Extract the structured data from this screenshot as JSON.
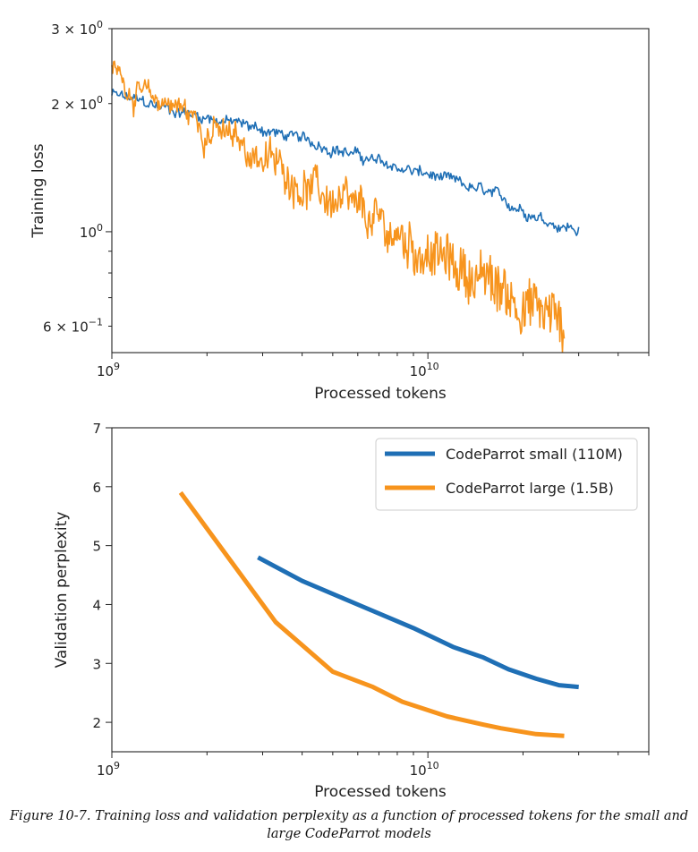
{
  "colors": {
    "small": "#1f6fb5",
    "large": "#f7941d"
  },
  "caption": "Figure 10-7. Training loss and validation perplexity as a function of processed tokens for the small and large CodeParrot models",
  "chart_data": [
    {
      "type": "line",
      "xlabel": "Processed tokens",
      "ylabel": "Training loss",
      "xscale": "log",
      "yscale": "log",
      "xlim": [
        1000000000.0,
        50000000000.0
      ],
      "ylim": [
        0.52,
        3.0
      ],
      "xticks": [
        {
          "value": 1000000000.0,
          "base": "10",
          "exp": "9"
        },
        {
          "value": 10000000000.0,
          "base": "10",
          "exp": "10"
        }
      ],
      "yticks": [
        {
          "value": 3.0,
          "mant": "3 × 10",
          "exp": "0"
        },
        {
          "value": 2.0,
          "mant": "2 × 10",
          "exp": "0"
        },
        {
          "value": 1.0,
          "mant": "10",
          "exp": "0"
        },
        {
          "value": 0.6,
          "mant": "6 × 10",
          "exp": "−1"
        }
      ],
      "grid": false,
      "series": [
        {
          "key": "small",
          "noise": 0.02,
          "values": [
            [
              1000000000.0,
              2.1
            ],
            [
              1400000000.0,
              1.97
            ],
            [
              2000000000.0,
              1.86
            ],
            [
              3000000000.0,
              1.74
            ],
            [
              4000000000.0,
              1.64
            ],
            [
              5000000000.0,
              1.58
            ],
            [
              7000000000.0,
              1.45
            ],
            [
              10000000000.0,
              1.36
            ],
            [
              15000000000.0,
              1.24
            ],
            [
              20000000000.0,
              1.13
            ],
            [
              25000000000.0,
              1.05
            ],
            [
              30000000000.0,
              1.01
            ]
          ]
        },
        {
          "key": "large",
          "noise": 0.06,
          "values": [
            [
              1000000000.0,
              2.4
            ],
            [
              1150000000.0,
              2.2
            ],
            [
              1300000000.0,
              2.0
            ],
            [
              1500000000.0,
              2.05
            ],
            [
              2000000000.0,
              1.75
            ],
            [
              3000000000.0,
              1.5
            ],
            [
              4000000000.0,
              1.3
            ],
            [
              5000000000.0,
              1.18
            ],
            [
              7000000000.0,
              1.03
            ],
            [
              10000000000.0,
              0.89
            ],
            [
              15000000000.0,
              0.77
            ],
            [
              20000000000.0,
              0.68
            ],
            [
              27000000000.0,
              0.61
            ]
          ]
        }
      ]
    },
    {
      "type": "line",
      "xlabel": "Processed tokens",
      "ylabel": "Validation perplexity",
      "xscale": "log",
      "xlim": [
        1000000000.0,
        50000000000.0
      ],
      "ylim": [
        1.5,
        7.0
      ],
      "xticks": [
        {
          "value": 1000000000.0,
          "base": "10",
          "exp": "9"
        },
        {
          "value": 10000000000.0,
          "base": "10",
          "exp": "10"
        }
      ],
      "yticks": [
        {
          "value": 2,
          "label": "2"
        },
        {
          "value": 3,
          "label": "3"
        },
        {
          "value": 4,
          "label": "4"
        },
        {
          "value": 5,
          "label": "5"
        },
        {
          "value": 6,
          "label": "6"
        },
        {
          "value": 7,
          "label": "7"
        }
      ],
      "grid": false,
      "legend_position": "top-right",
      "series": [
        {
          "key": "small",
          "name": "CodeParrot small (110M)",
          "values": [
            [
              2900000000.0,
              4.8
            ],
            [
              4000000000.0,
              4.4
            ],
            [
              6000000000.0,
              4.0
            ],
            [
              9000000000.0,
              3.6
            ],
            [
              12000000000.0,
              3.28
            ],
            [
              15000000000.0,
              3.1
            ],
            [
              18000000000.0,
              2.9
            ],
            [
              22000000000.0,
              2.74
            ],
            [
              26000000000.0,
              2.63
            ],
            [
              30000000000.0,
              2.6
            ]
          ]
        },
        {
          "key": "large",
          "name": "CodeParrot large (1.5B)",
          "values": [
            [
              1650000000.0,
              5.9
            ],
            [
              3300000000.0,
              3.7
            ],
            [
              5000000000.0,
              2.86
            ],
            [
              6700000000.0,
              2.6
            ],
            [
              8300000000.0,
              2.35
            ],
            [
              11500000000.0,
              2.1
            ],
            [
              15000000000.0,
              1.96
            ],
            [
              17000000000.0,
              1.9
            ],
            [
              22000000000.0,
              1.8
            ],
            [
              27000000000.0,
              1.77
            ]
          ]
        }
      ]
    }
  ]
}
